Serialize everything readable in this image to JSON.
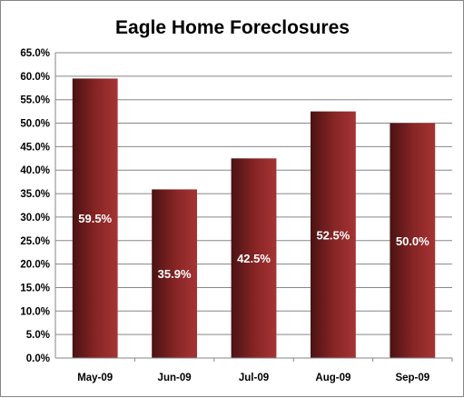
{
  "chart_data": {
    "type": "bar",
    "title": "Eagle Home Foreclosures",
    "categories": [
      "May-09",
      "Jun-09",
      "Jul-09",
      "Aug-09",
      "Sep-09"
    ],
    "values": [
      59.5,
      35.9,
      42.5,
      52.5,
      50.0
    ],
    "data_labels": [
      "59.5%",
      "35.9%",
      "42.5%",
      "52.5%",
      "50.0%"
    ],
    "ylim": [
      0,
      65
    ],
    "ytick_labels": [
      "0.0%",
      "5.0%",
      "10.0%",
      "15.0%",
      "20.0%",
      "25.0%",
      "30.0%",
      "35.0%",
      "40.0%",
      "45.0%",
      "50.0%",
      "55.0%",
      "60.0%",
      "65.0%"
    ],
    "xlabel": "",
    "ylabel": "",
    "grid": true,
    "legend": "none",
    "colors": {
      "bar_dark": "#4a1212",
      "bar_mid": "#8a2626",
      "bar_light": "#a53434",
      "gridline": "#868686",
      "axis": "#868686",
      "data_label": "#ffffff"
    }
  }
}
